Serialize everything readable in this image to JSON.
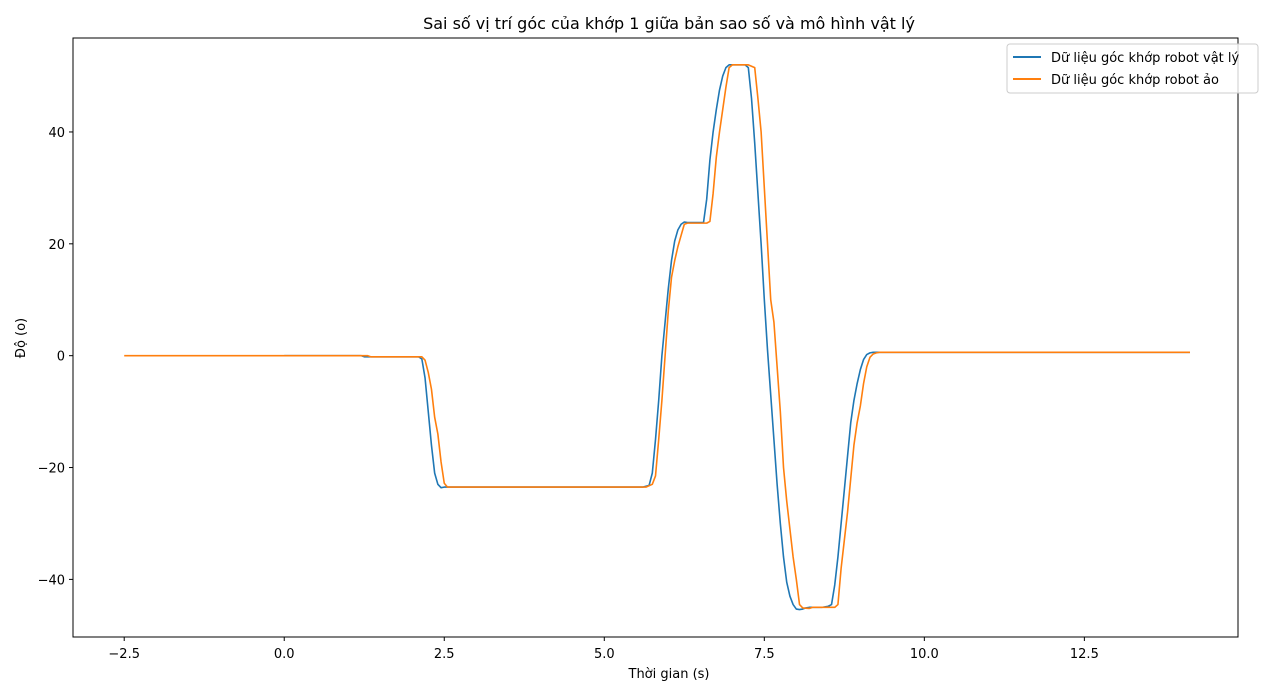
{
  "chart_data": {
    "type": "line",
    "title": "Sai số vị trí góc của khớp 1 giữa bản sao số và mô hình vật lý",
    "xlabel": "Thời gian (s)",
    "ylabel": "Độ (o)",
    "xlim": [
      -3.3,
      14.9
    ],
    "ylim": [
      -50.3,
      56.8
    ],
    "xticks": [
      -2.5,
      0.0,
      2.5,
      5.0,
      7.5,
      10.0,
      12.5
    ],
    "xtick_labels": [
      "−2.5",
      "0.0",
      "2.5",
      "5.0",
      "7.5",
      "10.0",
      "12.5"
    ],
    "yticks": [
      -40,
      -20,
      0,
      20,
      40
    ],
    "ytick_labels": [
      "−40",
      "−20",
      "0",
      "20",
      "40"
    ],
    "grid": false,
    "legend_position": "top-right",
    "series": [
      {
        "name": "Dữ liệu góc khớp robot vật lý",
        "color": "#1f77b4",
        "points": [
          [
            0.0,
            0.0
          ],
          [
            1.2,
            0.0
          ],
          [
            1.25,
            -0.2
          ],
          [
            2.1,
            -0.2
          ],
          [
            2.15,
            -0.6
          ],
          [
            2.2,
            -4
          ],
          [
            2.25,
            -10
          ],
          [
            2.3,
            -16
          ],
          [
            2.35,
            -21
          ],
          [
            2.4,
            -23
          ],
          [
            2.45,
            -23.6
          ],
          [
            2.5,
            -23.5
          ],
          [
            5.6,
            -23.5
          ],
          [
            5.7,
            -23.2
          ],
          [
            5.75,
            -21
          ],
          [
            5.8,
            -15
          ],
          [
            5.85,
            -8
          ],
          [
            5.9,
            0
          ],
          [
            5.95,
            6
          ],
          [
            6.0,
            12
          ],
          [
            6.05,
            17
          ],
          [
            6.1,
            20.5
          ],
          [
            6.15,
            22.5
          ],
          [
            6.2,
            23.5
          ],
          [
            6.25,
            23.9
          ],
          [
            6.3,
            23.8
          ],
          [
            6.55,
            23.8
          ],
          [
            6.6,
            28
          ],
          [
            6.65,
            35
          ],
          [
            6.7,
            40
          ],
          [
            6.75,
            44
          ],
          [
            6.8,
            47.5
          ],
          [
            6.85,
            50
          ],
          [
            6.9,
            51.5
          ],
          [
            6.95,
            52
          ],
          [
            7.0,
            52
          ],
          [
            7.2,
            52
          ],
          [
            7.25,
            51.5
          ],
          [
            7.3,
            46
          ],
          [
            7.35,
            38
          ],
          [
            7.4,
            29
          ],
          [
            7.45,
            20
          ],
          [
            7.5,
            10
          ],
          [
            7.55,
            1
          ],
          [
            7.6,
            -7
          ],
          [
            7.65,
            -15
          ],
          [
            7.7,
            -23
          ],
          [
            7.75,
            -30
          ],
          [
            7.8,
            -36
          ],
          [
            7.85,
            -40.5
          ],
          [
            7.9,
            -43
          ],
          [
            7.95,
            -44.5
          ],
          [
            8.0,
            -45.3
          ],
          [
            8.05,
            -45.4
          ],
          [
            8.1,
            -45.3
          ],
          [
            8.15,
            -45.1
          ],
          [
            8.2,
            -45
          ],
          [
            8.4,
            -45
          ],
          [
            8.5,
            -44.8
          ],
          [
            8.55,
            -44.5
          ],
          [
            8.6,
            -41
          ],
          [
            8.65,
            -36
          ],
          [
            8.7,
            -30
          ],
          [
            8.75,
            -24
          ],
          [
            8.8,
            -18
          ],
          [
            8.85,
            -12
          ],
          [
            8.9,
            -8
          ],
          [
            8.95,
            -5
          ],
          [
            9.0,
            -2.5
          ],
          [
            9.05,
            -0.7
          ],
          [
            9.1,
            0.2
          ],
          [
            9.15,
            0.5
          ],
          [
            9.2,
            0.6
          ],
          [
            14.15,
            0.6
          ]
        ]
      },
      {
        "name": "Dữ liệu góc khớp robot ảo",
        "color": "#ff7f0e",
        "points": [
          [
            -2.5,
            0.0
          ],
          [
            1.3,
            0.0
          ],
          [
            1.35,
            -0.2
          ],
          [
            2.15,
            -0.2
          ],
          [
            2.2,
            -0.8
          ],
          [
            2.25,
            -3
          ],
          [
            2.3,
            -6
          ],
          [
            2.35,
            -11
          ],
          [
            2.4,
            -14
          ],
          [
            2.45,
            -19
          ],
          [
            2.5,
            -22.8
          ],
          [
            2.55,
            -23.5
          ],
          [
            5.65,
            -23.5
          ],
          [
            5.75,
            -23
          ],
          [
            5.8,
            -21.5
          ],
          [
            5.85,
            -15
          ],
          [
            5.9,
            -8
          ],
          [
            5.95,
            0
          ],
          [
            6.0,
            8
          ],
          [
            6.05,
            14
          ],
          [
            6.1,
            17
          ],
          [
            6.15,
            19.5
          ],
          [
            6.2,
            21.5
          ],
          [
            6.25,
            23.5
          ],
          [
            6.3,
            23.7
          ],
          [
            6.6,
            23.7
          ],
          [
            6.65,
            24
          ],
          [
            6.7,
            29
          ],
          [
            6.75,
            35.5
          ],
          [
            6.8,
            40
          ],
          [
            6.85,
            44
          ],
          [
            6.9,
            48
          ],
          [
            6.95,
            51.5
          ],
          [
            7.0,
            52
          ],
          [
            7.25,
            52
          ],
          [
            7.35,
            51.5
          ],
          [
            7.4,
            46
          ],
          [
            7.45,
            40
          ],
          [
            7.5,
            30
          ],
          [
            7.55,
            20
          ],
          [
            7.6,
            10
          ],
          [
            7.65,
            6
          ],
          [
            7.7,
            -2
          ],
          [
            7.75,
            -10
          ],
          [
            7.8,
            -20
          ],
          [
            7.85,
            -26
          ],
          [
            7.9,
            -31
          ],
          [
            7.95,
            -36
          ],
          [
            8.0,
            -40
          ],
          [
            8.05,
            -44.5
          ],
          [
            8.1,
            -45.1
          ],
          [
            8.2,
            -45.2
          ],
          [
            8.25,
            -45
          ],
          [
            8.6,
            -45
          ],
          [
            8.65,
            -44.5
          ],
          [
            8.7,
            -38
          ],
          [
            8.75,
            -33
          ],
          [
            8.8,
            -28
          ],
          [
            8.85,
            -22
          ],
          [
            8.9,
            -16
          ],
          [
            8.95,
            -12
          ],
          [
            9.0,
            -9
          ],
          [
            9.05,
            -5
          ],
          [
            9.1,
            -2
          ],
          [
            9.15,
            -0.3
          ],
          [
            9.2,
            0.3
          ],
          [
            9.25,
            0.5
          ],
          [
            9.3,
            0.6
          ],
          [
            14.15,
            0.6
          ]
        ]
      }
    ]
  }
}
